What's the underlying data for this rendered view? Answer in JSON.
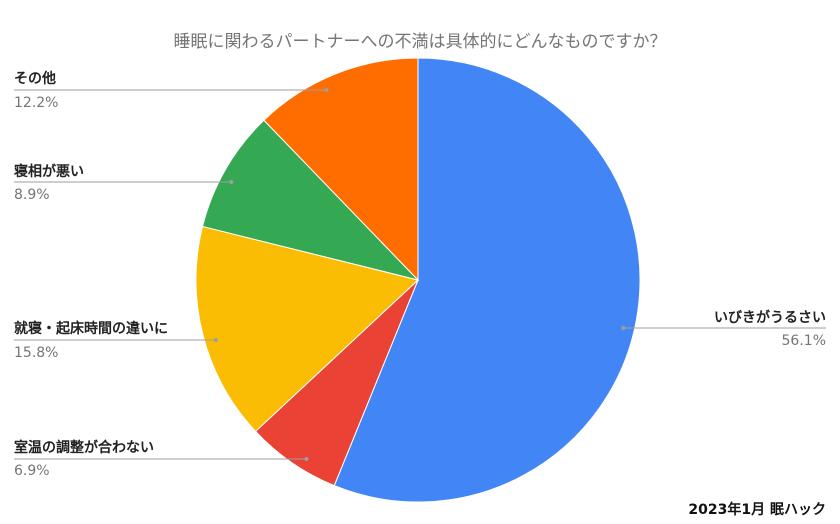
{
  "chart_data": {
    "type": "pie",
    "title": "睡眠に関わるパートナーへの不満は具体的にどんなものですか？",
    "source": "2023年1月 眠ハック",
    "slices": [
      {
        "label": "いびきがうるさい",
        "value": 56.1,
        "display": "56.1%",
        "color": "#4285F4"
      },
      {
        "label": "室温の調整が合わない",
        "value": 6.9,
        "display": "6.9%",
        "color": "#EA4335"
      },
      {
        "label": "就寝・起床時間の違いに",
        "value": 15.8,
        "display": "15.8%",
        "color": "#FBBC04"
      },
      {
        "label": "寝相が悪い",
        "value": 8.9,
        "display": "8.9%",
        "color": "#34A853"
      },
      {
        "label": "その他",
        "value": 12.2,
        "display": "12.2%",
        "color": "#FF6D01"
      }
    ]
  }
}
